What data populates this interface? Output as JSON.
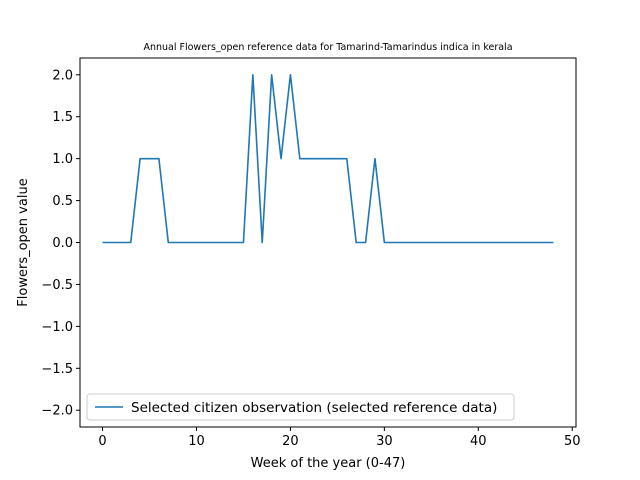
{
  "chart_data": {
    "type": "line",
    "title": "Annual Flowers_open reference data for Tamarind-Tamarindus indica in kerala",
    "xlabel": "Week of the year (0-47)",
    "ylabel": "Flowers_open value",
    "xlim": [
      -2.4,
      50.4
    ],
    "ylim": [
      -2.2,
      2.2
    ],
    "xticks": [
      0,
      10,
      20,
      30,
      40,
      50
    ],
    "xtick_labels": [
      "0",
      "10",
      "20",
      "30",
      "40",
      "50"
    ],
    "yticks": [
      -2.0,
      -1.5,
      -1.0,
      -0.5,
      0.0,
      0.5,
      1.0,
      1.5,
      2.0
    ],
    "ytick_labels": [
      "−2.0",
      "−1.5",
      "−1.0",
      "−0.5",
      "0.0",
      "0.5",
      "1.0",
      "1.5",
      "2.0"
    ],
    "grid": false,
    "legend_position": "lower-left",
    "series": [
      {
        "name": "Selected citizen observation (selected reference data)",
        "color": "#1f77b4",
        "x": [
          0,
          1,
          2,
          3,
          4,
          5,
          6,
          7,
          8,
          9,
          10,
          11,
          12,
          13,
          14,
          15,
          16,
          17,
          18,
          19,
          20,
          21,
          22,
          23,
          24,
          25,
          26,
          27,
          28,
          29,
          30,
          31,
          32,
          33,
          34,
          35,
          36,
          37,
          38,
          39,
          40,
          41,
          42,
          43,
          44,
          45,
          46,
          47,
          48
        ],
        "y": [
          0,
          0,
          0,
          0,
          1,
          1,
          1,
          0,
          0,
          0,
          0,
          0,
          0,
          0,
          0,
          0,
          2,
          0,
          2,
          1,
          2,
          1,
          1,
          1,
          1,
          1,
          1,
          0,
          0,
          1,
          0,
          0,
          0,
          0,
          0,
          0,
          0,
          0,
          0,
          0,
          0,
          0,
          0,
          0,
          0,
          0,
          0,
          0,
          0
        ]
      }
    ]
  }
}
